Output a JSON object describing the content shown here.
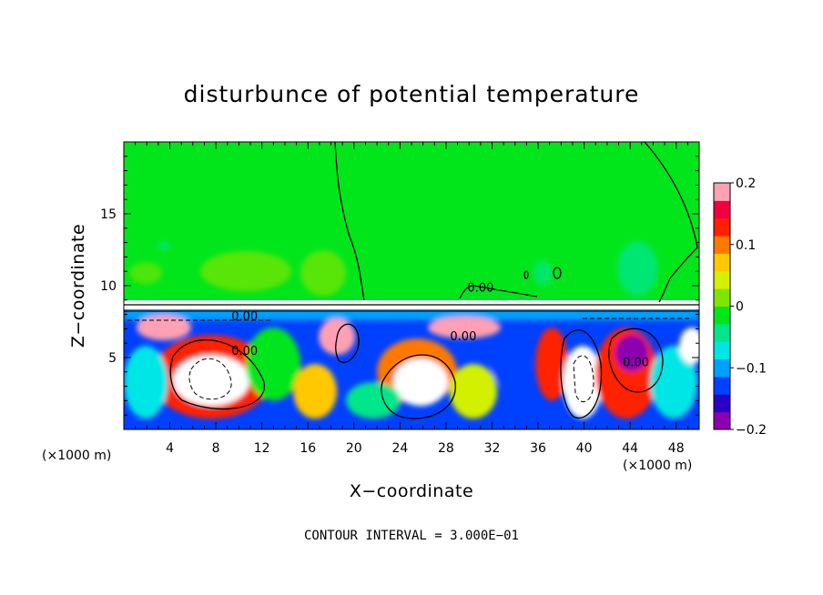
{
  "chart_data": {
    "type": "heatmap",
    "title": "disturbunce of potential temperature",
    "xlabel": "X−coordinate",
    "ylabel": "Z−coordinate",
    "x_unit": "(×1000 m)",
    "x_unit_right": "(×1000 m)",
    "y_unit": "(×1000 m)",
    "xlim": [
      0,
      50
    ],
    "ylim": [
      0,
      20
    ],
    "x_ticks": [
      4,
      8,
      12,
      16,
      20,
      24,
      28,
      32,
      36,
      40,
      44,
      48
    ],
    "y_ticks": [
      5,
      10,
      15
    ],
    "colorbar": {
      "range": [
        -0.2,
        0.2
      ],
      "tick_values": [
        0.2,
        0.1,
        0,
        -0.1,
        -0.2
      ],
      "tick_labels": [
        "0.2",
        "0.1",
        "0",
        "−0.1",
        "−0.2"
      ]
    },
    "contour_labels": [
      {
        "text": "0.00",
        "x": 31,
        "z": 9.6
      },
      {
        "text": "0.00",
        "x": 10.5,
        "z": 7.6
      },
      {
        "text": "0.00",
        "x": 10.5,
        "z": 5.2
      },
      {
        "text": "0.00",
        "x": 29.5,
        "z": 6.2
      },
      {
        "text": "0.00",
        "x": 44.5,
        "z": 4.4
      }
    ],
    "footer": "CONTOUR INTERVAL = 3.000E−01",
    "grid": false,
    "legend": "colorbar-right"
  },
  "colors": {
    "background": "#00e61a",
    "colormap": [
      "#8a00b0",
      "#2a00c8",
      "#0040ff",
      "#00a0ff",
      "#00e6e6",
      "#00e68a",
      "#00e61a",
      "#7ee600",
      "#d2f000",
      "#ffc800",
      "#ff7800",
      "#ff2000",
      "#f00040",
      "#ffa0b4"
    ]
  }
}
